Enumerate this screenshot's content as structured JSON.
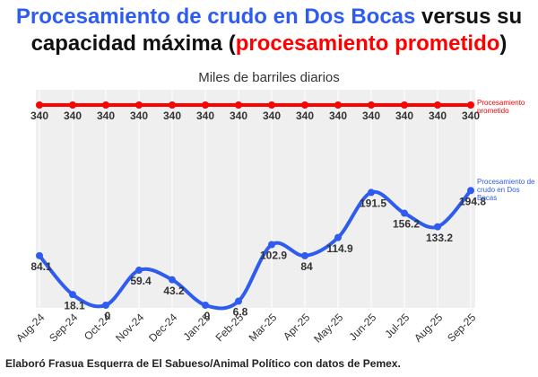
{
  "chart_data": {
    "type": "line",
    "title_parts": [
      "Procesamiento de crudo en Dos Bocas",
      "versus su capacidad máxima",
      "(",
      "procesamiento prometido",
      ")"
    ],
    "subtitle": "Miles de barriles diarios",
    "footer": "Elaboró Frasua Esquerra de El Sabueso/Animal Político con datos de Pemex.",
    "categories": [
      "Aug-24",
      "Sep-24",
      "Oct-24",
      "Nov-24",
      "Dec-24",
      "Jan-25",
      "Feb-25",
      "Mar-25",
      "Apr-25",
      "May-25",
      "Jun-25",
      "Jul-25",
      "Aug-25",
      "Sep-25"
    ],
    "series": [
      {
        "name": "Procesamiento prometido",
        "color": "#ff0000",
        "values": [
          340,
          340,
          340,
          340,
          340,
          340,
          340,
          340,
          340,
          340,
          340,
          340,
          340,
          340
        ]
      },
      {
        "name": "Procesamiento de crudo en Dos Bocas",
        "color": "#2f5cf0",
        "values": [
          84.1,
          18.1,
          0,
          59.4,
          43.2,
          0,
          6.8,
          102.9,
          84,
          114.9,
          191.5,
          156.2,
          133.2,
          194.8
        ]
      }
    ],
    "ylim": [
      0,
      340
    ],
    "grid": true
  }
}
